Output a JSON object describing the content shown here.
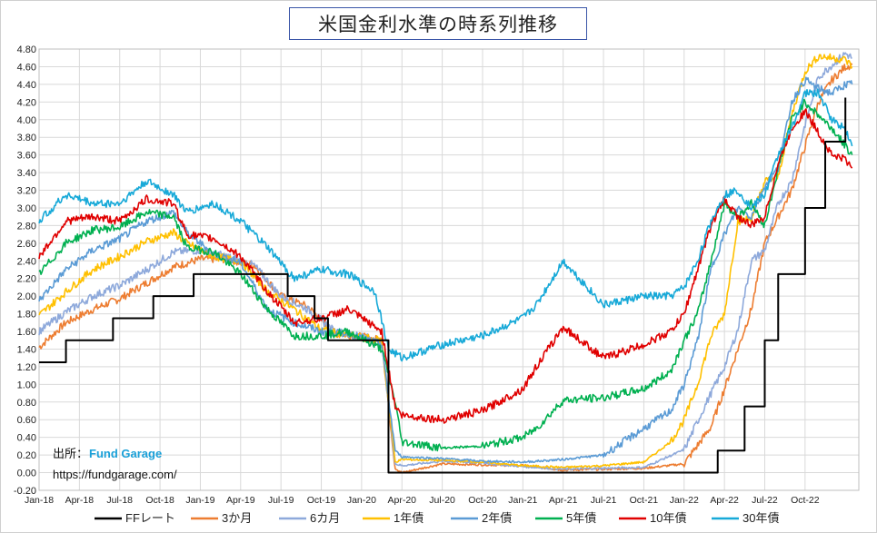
{
  "title": "米国金利水準の時系列推移",
  "source": {
    "prefix": "出所：",
    "brand": "Fund Garage",
    "url": "https://fundgarage.com/"
  },
  "chart_data": {
    "type": "line",
    "title": "米国金利水準の時系列推移",
    "xlabel": "",
    "ylabel": "",
    "ylim": [
      -0.2,
      4.8
    ],
    "y_ticks": [
      "-0.20",
      "0.00",
      "0.20",
      "0.40",
      "0.60",
      "0.80",
      "1.00",
      "1.20",
      "1.40",
      "1.60",
      "1.80",
      "2.00",
      "2.20",
      "2.40",
      "2.60",
      "2.80",
      "3.00",
      "3.20",
      "3.40",
      "3.60",
      "3.80",
      "4.00",
      "4.20",
      "4.40",
      "4.60",
      "4.80"
    ],
    "x_ticks": [
      "Jan-18",
      "Apr-18",
      "Jul-18",
      "Oct-18",
      "Jan-19",
      "Apr-19",
      "Jul-19",
      "Oct-19",
      "Jan-20",
      "Apr-20",
      "Jul-20",
      "Oct-20",
      "Jan-21",
      "Apr-21",
      "Jul-21",
      "Oct-21",
      "Jan-22",
      "Apr-22",
      "Jul-22",
      "Oct-22"
    ],
    "grid": "horizontal and vertical",
    "legend_position": "bottom",
    "series": [
      {
        "name": "FFレート",
        "color": "#000000",
        "step": true,
        "points": [
          [
            0,
            1.25
          ],
          [
            2,
            1.5
          ],
          [
            5.5,
            1.75
          ],
          [
            8.5,
            2.0
          ],
          [
            11.5,
            2.25
          ],
          [
            18.5,
            2.0
          ],
          [
            20.5,
            1.75
          ],
          [
            21.5,
            1.5
          ],
          [
            26,
            0.0
          ],
          [
            50.5,
            0.25
          ],
          [
            52.5,
            0.75
          ],
          [
            54,
            1.5
          ],
          [
            55,
            2.25
          ],
          [
            57,
            3.0
          ],
          [
            58.5,
            3.75
          ],
          [
            60,
            4.25
          ]
        ]
      },
      {
        "name": "3か月",
        "color": "#ed7d31",
        "points": [
          [
            0,
            1.42
          ],
          [
            2,
            1.7
          ],
          [
            4,
            1.85
          ],
          [
            6,
            1.97
          ],
          [
            8,
            2.15
          ],
          [
            10,
            2.33
          ],
          [
            12,
            2.42
          ],
          [
            14,
            2.42
          ],
          [
            16,
            2.35
          ],
          [
            18,
            2.0
          ],
          [
            20,
            1.88
          ],
          [
            22,
            1.58
          ],
          [
            24,
            1.54
          ],
          [
            25.5,
            1.5
          ],
          [
            26.5,
            0.05
          ],
          [
            27,
            0.0
          ],
          [
            30,
            0.1
          ],
          [
            33,
            0.09
          ],
          [
            36,
            0.08
          ],
          [
            39,
            0.03
          ],
          [
            42,
            0.04
          ],
          [
            45,
            0.05
          ],
          [
            48,
            0.1
          ],
          [
            50,
            0.52
          ],
          [
            51,
            0.95
          ],
          [
            52,
            1.4
          ],
          [
            53,
            1.85
          ],
          [
            54,
            2.6
          ],
          [
            55,
            2.9
          ],
          [
            56,
            3.2
          ],
          [
            57,
            3.7
          ],
          [
            58,
            4.2
          ],
          [
            59,
            4.45
          ],
          [
            60,
            4.6
          ],
          [
            60.5,
            4.62
          ]
        ]
      },
      {
        "name": "6カ月",
        "color": "#8ea9db",
        "points": [
          [
            0,
            1.6
          ],
          [
            2,
            1.82
          ],
          [
            4,
            2.0
          ],
          [
            6,
            2.12
          ],
          [
            8,
            2.3
          ],
          [
            10,
            2.5
          ],
          [
            12,
            2.52
          ],
          [
            14,
            2.45
          ],
          [
            16,
            2.35
          ],
          [
            18,
            2.0
          ],
          [
            20,
            1.85
          ],
          [
            22,
            1.6
          ],
          [
            24,
            1.55
          ],
          [
            25.5,
            1.48
          ],
          [
            26.5,
            0.1
          ],
          [
            27,
            0.08
          ],
          [
            30,
            0.13
          ],
          [
            33,
            0.11
          ],
          [
            36,
            0.07
          ],
          [
            39,
            0.04
          ],
          [
            42,
            0.05
          ],
          [
            45,
            0.06
          ],
          [
            48,
            0.26
          ],
          [
            50,
            0.9
          ],
          [
            51,
            1.2
          ],
          [
            52,
            1.62
          ],
          [
            53,
            2.4
          ],
          [
            54,
            2.52
          ],
          [
            55,
            3.05
          ],
          [
            56,
            3.3
          ],
          [
            57,
            3.95
          ],
          [
            58,
            4.48
          ],
          [
            59,
            4.62
          ],
          [
            60,
            4.75
          ],
          [
            60.5,
            4.7
          ]
        ]
      },
      {
        "name": "1年債",
        "color": "#ffc000",
        "points": [
          [
            0,
            1.78
          ],
          [
            2,
            2.05
          ],
          [
            4,
            2.3
          ],
          [
            6,
            2.45
          ],
          [
            8,
            2.62
          ],
          [
            10,
            2.72
          ],
          [
            11,
            2.6
          ],
          [
            13,
            2.45
          ],
          [
            15,
            2.4
          ],
          [
            17,
            2.05
          ],
          [
            19,
            1.85
          ],
          [
            21,
            1.62
          ],
          [
            23,
            1.55
          ],
          [
            25.5,
            1.5
          ],
          [
            26.5,
            0.12
          ],
          [
            27,
            0.15
          ],
          [
            30,
            0.14
          ],
          [
            33,
            0.12
          ],
          [
            36,
            0.08
          ],
          [
            39,
            0.06
          ],
          [
            42,
            0.08
          ],
          [
            45,
            0.12
          ],
          [
            47,
            0.35
          ],
          [
            48,
            0.6
          ],
          [
            49,
            1.0
          ],
          [
            50,
            1.55
          ],
          [
            51,
            1.8
          ],
          [
            52,
            2.85
          ],
          [
            53,
            2.88
          ],
          [
            54,
            3.3
          ],
          [
            55,
            3.35
          ],
          [
            56,
            4.05
          ],
          [
            57,
            4.55
          ],
          [
            58,
            4.72
          ],
          [
            59,
            4.7
          ],
          [
            60,
            4.68
          ],
          [
            60.5,
            4.6
          ]
        ]
      },
      {
        "name": "2年債",
        "color": "#5b9bd5",
        "points": [
          [
            0,
            1.95
          ],
          [
            2,
            2.3
          ],
          [
            4,
            2.52
          ],
          [
            6,
            2.65
          ],
          [
            8,
            2.85
          ],
          [
            10,
            2.95
          ],
          [
            11,
            2.72
          ],
          [
            13,
            2.48
          ],
          [
            15,
            2.38
          ],
          [
            17,
            1.85
          ],
          [
            19,
            1.7
          ],
          [
            21,
            1.6
          ],
          [
            23,
            1.58
          ],
          [
            25.5,
            1.45
          ],
          [
            26.5,
            0.25
          ],
          [
            27,
            0.18
          ],
          [
            30,
            0.16
          ],
          [
            33,
            0.13
          ],
          [
            36,
            0.12
          ],
          [
            39,
            0.15
          ],
          [
            42,
            0.2
          ],
          [
            45,
            0.5
          ],
          [
            47,
            0.7
          ],
          [
            48,
            1.0
          ],
          [
            49,
            1.5
          ],
          [
            50,
            2.3
          ],
          [
            51,
            2.7
          ],
          [
            52,
            3.0
          ],
          [
            53,
            2.9
          ],
          [
            54,
            3.25
          ],
          [
            55,
            3.45
          ],
          [
            56,
            4.2
          ],
          [
            57,
            4.45
          ],
          [
            58,
            4.35
          ],
          [
            59,
            4.3
          ],
          [
            60,
            4.4
          ],
          [
            60.5,
            4.4
          ]
        ]
      },
      {
        "name": "5年債",
        "color": "#00b050",
        "points": [
          [
            0,
            2.25
          ],
          [
            2,
            2.6
          ],
          [
            4,
            2.75
          ],
          [
            6,
            2.78
          ],
          [
            8,
            2.95
          ],
          [
            10,
            2.9
          ],
          [
            11,
            2.55
          ],
          [
            13,
            2.5
          ],
          [
            15,
            2.25
          ],
          [
            17,
            1.85
          ],
          [
            19,
            1.55
          ],
          [
            21,
            1.55
          ],
          [
            23,
            1.6
          ],
          [
            25.5,
            1.4
          ],
          [
            26.5,
            0.8
          ],
          [
            27,
            0.35
          ],
          [
            30,
            0.28
          ],
          [
            33,
            0.3
          ],
          [
            36,
            0.4
          ],
          [
            37,
            0.5
          ],
          [
            39,
            0.82
          ],
          [
            42,
            0.85
          ],
          [
            45,
            0.95
          ],
          [
            47,
            1.15
          ],
          [
            48,
            1.5
          ],
          [
            49,
            1.8
          ],
          [
            50,
            2.4
          ],
          [
            51,
            3.05
          ],
          [
            52,
            2.9
          ],
          [
            53,
            3.05
          ],
          [
            54,
            2.8
          ],
          [
            55,
            3.45
          ],
          [
            56,
            4.0
          ],
          [
            57,
            4.2
          ],
          [
            58,
            4.05
          ],
          [
            59,
            3.9
          ],
          [
            60,
            3.7
          ],
          [
            60.5,
            3.6
          ]
        ]
      },
      {
        "name": "10年債",
        "color": "#e00000",
        "points": [
          [
            0,
            2.45
          ],
          [
            2,
            2.85
          ],
          [
            4,
            2.9
          ],
          [
            6,
            2.85
          ],
          [
            8,
            3.1
          ],
          [
            10,
            3.05
          ],
          [
            11,
            2.7
          ],
          [
            13,
            2.65
          ],
          [
            15,
            2.45
          ],
          [
            17,
            2.05
          ],
          [
            19,
            1.7
          ],
          [
            21,
            1.75
          ],
          [
            23,
            1.85
          ],
          [
            25.5,
            1.6
          ],
          [
            26.5,
            0.75
          ],
          [
            27,
            0.65
          ],
          [
            30,
            0.6
          ],
          [
            33,
            0.7
          ],
          [
            36,
            0.95
          ],
          [
            37,
            1.2
          ],
          [
            39,
            1.65
          ],
          [
            42,
            1.3
          ],
          [
            45,
            1.45
          ],
          [
            47,
            1.6
          ],
          [
            48,
            1.8
          ],
          [
            49,
            2.3
          ],
          [
            50,
            2.8
          ],
          [
            51,
            3.1
          ],
          [
            52,
            2.9
          ],
          [
            53,
            2.8
          ],
          [
            54,
            2.9
          ],
          [
            55,
            3.5
          ],
          [
            56,
            3.9
          ],
          [
            57,
            4.1
          ],
          [
            58,
            3.85
          ],
          [
            59,
            3.6
          ],
          [
            60,
            3.55
          ],
          [
            60.5,
            3.45
          ]
        ]
      },
      {
        "name": "30年債",
        "color": "#17a9d8",
        "points": [
          [
            0,
            2.85
          ],
          [
            2,
            3.15
          ],
          [
            4,
            3.05
          ],
          [
            6,
            3.05
          ],
          [
            8,
            3.3
          ],
          [
            10,
            3.15
          ],
          [
            11,
            2.95
          ],
          [
            13,
            3.05
          ],
          [
            15,
            2.85
          ],
          [
            17,
            2.55
          ],
          [
            19,
            2.2
          ],
          [
            21,
            2.3
          ],
          [
            23,
            2.25
          ],
          [
            25,
            2.05
          ],
          [
            26,
            1.4
          ],
          [
            27,
            1.3
          ],
          [
            30,
            1.45
          ],
          [
            33,
            1.55
          ],
          [
            36,
            1.75
          ],
          [
            37,
            1.9
          ],
          [
            39,
            2.4
          ],
          [
            42,
            1.9
          ],
          [
            45,
            2.0
          ],
          [
            47,
            2.0
          ],
          [
            48,
            2.1
          ],
          [
            49,
            2.4
          ],
          [
            50,
            2.85
          ],
          [
            51,
            3.15
          ],
          [
            52,
            3.2
          ],
          [
            53,
            3.0
          ],
          [
            54,
            3.15
          ],
          [
            55,
            3.6
          ],
          [
            56,
            3.9
          ],
          [
            57,
            4.3
          ],
          [
            58,
            4.3
          ],
          [
            59,
            4.0
          ],
          [
            60,
            3.9
          ],
          [
            60.5,
            3.7
          ]
        ]
      }
    ]
  }
}
